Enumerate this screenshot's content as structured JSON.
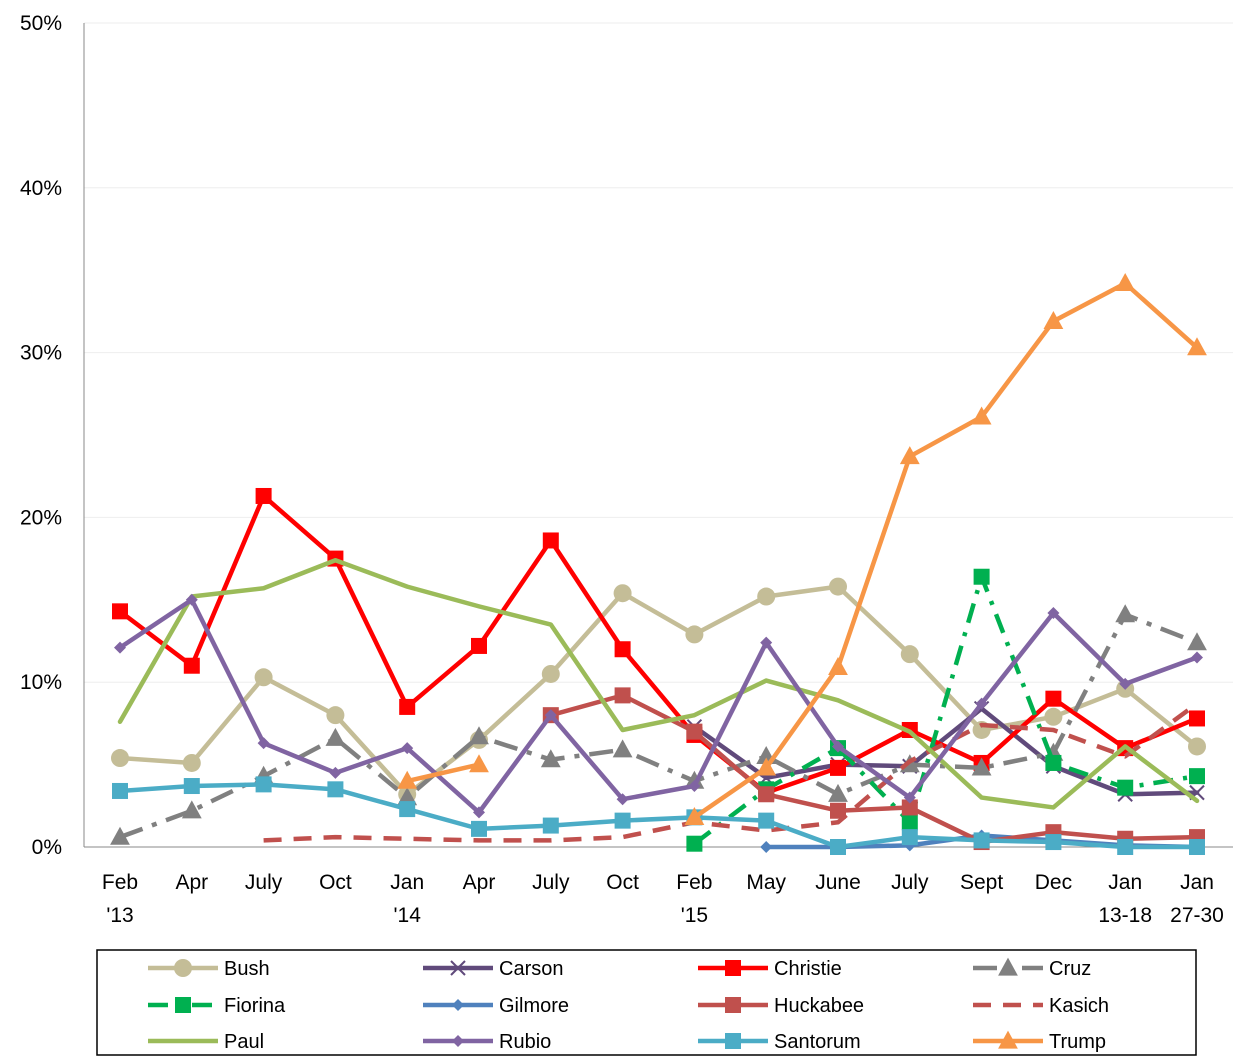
{
  "chart_data": {
    "type": "line",
    "title": "",
    "xlabel": "",
    "ylabel": "",
    "ylim": [
      0,
      50
    ],
    "y_ticks": [
      {
        "value": 0,
        "label": "0%"
      },
      {
        "value": 10,
        "label": "10%"
      },
      {
        "value": 20,
        "label": "20%"
      },
      {
        "value": 30,
        "label": "30%"
      },
      {
        "value": 40,
        "label": "40%"
      },
      {
        "value": 50,
        "label": "50%"
      }
    ],
    "grid": true,
    "legend_position": "bottom",
    "categories": [
      {
        "line1": "Feb",
        "line2": "'13"
      },
      {
        "line1": "Apr",
        "line2": ""
      },
      {
        "line1": "July",
        "line2": ""
      },
      {
        "line1": "Oct",
        "line2": ""
      },
      {
        "line1": "Jan",
        "line2": "'14"
      },
      {
        "line1": "Apr",
        "line2": ""
      },
      {
        "line1": "July",
        "line2": ""
      },
      {
        "line1": "Oct",
        "line2": ""
      },
      {
        "line1": "Feb",
        "line2": "'15"
      },
      {
        "line1": "May",
        "line2": ""
      },
      {
        "line1": "June",
        "line2": ""
      },
      {
        "line1": "July",
        "line2": ""
      },
      {
        "line1": "Sept",
        "line2": ""
      },
      {
        "line1": "Dec",
        "line2": ""
      },
      {
        "line1": "Jan",
        "line2": "13-18"
      },
      {
        "line1": "Jan",
        "line2": "27-30"
      }
    ],
    "series": [
      {
        "name": "Bush",
        "color": "#C4BD97",
        "marker": "circle",
        "dash": "solid",
        "values": [
          5.4,
          5.1,
          10.3,
          8.0,
          3.2,
          6.5,
          10.5,
          15.4,
          12.9,
          15.2,
          15.8,
          11.7,
          7.1,
          7.9,
          9.6,
          6.1
        ]
      },
      {
        "name": "Carson",
        "color": "#604A7B",
        "marker": "x",
        "dash": "solid",
        "values": [
          null,
          null,
          null,
          null,
          null,
          null,
          null,
          null,
          7.3,
          4.2,
          5.0,
          4.9,
          8.4,
          4.9,
          3.2,
          3.3
        ]
      },
      {
        "name": "Christie",
        "color": "#FF0000",
        "marker": "square",
        "dash": "solid",
        "values": [
          14.3,
          11.0,
          21.3,
          17.5,
          8.5,
          12.2,
          18.6,
          12.0,
          6.8,
          3.3,
          4.8,
          7.1,
          5.1,
          9.0,
          6.0,
          7.8
        ]
      },
      {
        "name": "Cruz",
        "color": "#808080",
        "marker": "triangle",
        "dash": "longdashdot",
        "values": [
          0.6,
          2.2,
          4.3,
          6.6,
          3.0,
          6.7,
          5.3,
          5.9,
          4.0,
          5.5,
          3.2,
          5.0,
          4.8,
          5.7,
          14.1,
          12.4
        ]
      },
      {
        "name": "Fiorina",
        "color": "#00B050",
        "marker": "square",
        "dash": "dashdot",
        "values": [
          null,
          null,
          null,
          null,
          null,
          null,
          null,
          null,
          0.2,
          3.5,
          6.0,
          1.5,
          16.4,
          5.1,
          3.6,
          4.3
        ]
      },
      {
        "name": "Gilmore",
        "color": "#4F81BD",
        "marker": "diamond",
        "dash": "solid",
        "values": [
          null,
          null,
          null,
          null,
          null,
          null,
          null,
          null,
          null,
          0.0,
          0.0,
          0.1,
          0.7,
          0.4,
          0.1,
          0.0
        ]
      },
      {
        "name": "Huckabee",
        "color": "#C0504D",
        "marker": "square",
        "dash": "solid",
        "values": [
          null,
          null,
          null,
          null,
          null,
          null,
          8.0,
          9.2,
          7.0,
          3.2,
          2.2,
          2.4,
          0.3,
          0.9,
          0.5,
          0.6
        ]
      },
      {
        "name": "Kasich",
        "color": "#C0504D",
        "marker": "none",
        "dash": "dash",
        "values": [
          null,
          null,
          0.4,
          0.6,
          0.5,
          0.4,
          0.4,
          0.6,
          1.5,
          1.0,
          1.5,
          5.2,
          7.4,
          7.1,
          5.5,
          8.7
        ]
      },
      {
        "name": "Paul",
        "color": "#9BBB59",
        "marker": "none",
        "dash": "solid",
        "values": [
          7.6,
          15.2,
          15.7,
          17.4,
          15.8,
          14.6,
          13.5,
          7.1,
          8.0,
          10.1,
          8.9,
          7.0,
          3.0,
          2.4,
          6.1,
          2.8
        ]
      },
      {
        "name": "Rubio",
        "color": "#8064A2",
        "marker": "diamond",
        "dash": "solid",
        "values": [
          12.1,
          15.0,
          6.3,
          4.5,
          6.0,
          2.1,
          8.0,
          2.9,
          3.7,
          12.4,
          6.1,
          3.0,
          8.7,
          14.2,
          9.9,
          11.5
        ]
      },
      {
        "name": "Santorum",
        "color": "#4BACC6",
        "marker": "square",
        "dash": "solid",
        "values": [
          3.4,
          3.7,
          3.8,
          3.5,
          2.3,
          1.1,
          1.3,
          1.6,
          1.8,
          1.6,
          0.0,
          0.6,
          0.4,
          0.3,
          0.0,
          0.0
        ]
      },
      {
        "name": "Trump",
        "color": "#F79646",
        "marker": "triangle",
        "dash": "solid",
        "values": [
          null,
          null,
          null,
          null,
          4.0,
          5.0,
          null,
          null,
          1.8,
          4.8,
          10.9,
          23.7,
          26.1,
          31.9,
          34.2,
          30.3
        ]
      }
    ]
  }
}
